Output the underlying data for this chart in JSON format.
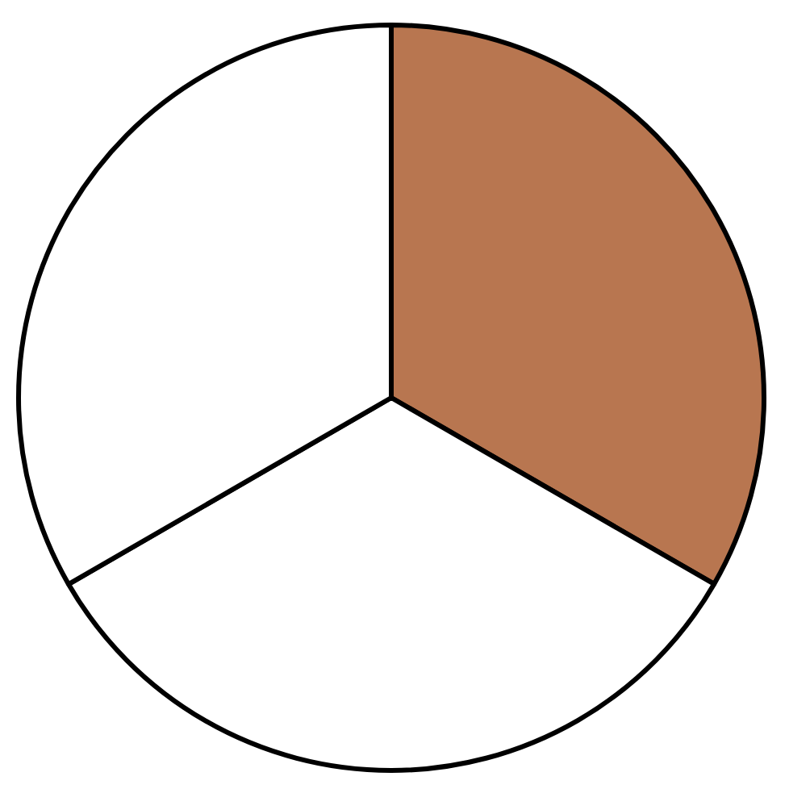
{
  "chart_data": {
    "type": "pie",
    "categories": [
      null,
      null,
      null
    ],
    "values": [
      33.33,
      33.33,
      33.34
    ],
    "colors": [
      "#b87650",
      "#ffffff",
      "#ffffff"
    ]
  }
}
